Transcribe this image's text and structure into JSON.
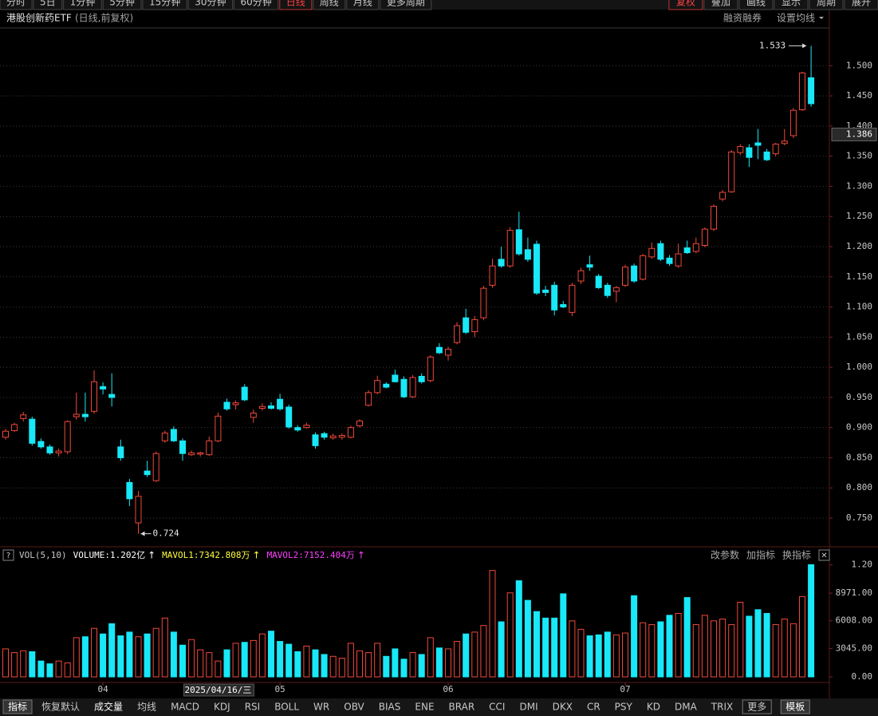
{
  "toolbar": {
    "tabs": [
      "分时",
      "5日",
      "1分钟",
      "5分钟",
      "15分钟",
      "30分钟",
      "60分钟",
      "日线",
      "周线",
      "月线",
      "更多周期"
    ],
    "active_tab_index": 7,
    "tools": [
      "复权",
      "叠加",
      "画线",
      "显示",
      "周期",
      "展开"
    ],
    "active_tool_index": 0
  },
  "header": {
    "title": "港股创新药ETF",
    "subtitle": "(日线,前复权)",
    "links": [
      "融资融券",
      "设置均线"
    ]
  },
  "chart_data": {
    "type": "candlestick",
    "open": [
      0.884,
      0.895,
      0.915,
      0.914,
      0.877,
      0.868,
      0.858,
      0.86,
      0.918,
      0.922,
      0.927,
      0.968,
      0.955,
      0.868,
      0.809,
      0.742,
      0.828,
      0.812,
      0.878,
      0.897,
      0.878,
      0.855,
      0.856,
      0.855,
      0.878,
      0.942,
      0.938,
      0.967,
      0.917,
      0.932,
      0.936,
      0.947,
      0.934,
      0.9,
      0.9,
      0.888,
      0.89,
      0.883,
      0.884,
      0.884,
      0.903,
      0.937,
      0.958,
      0.972,
      0.987,
      0.98,
      0.951,
      0.985,
      0.978,
      1.033,
      1.02,
      1.041,
      1.082,
      1.059,
      1.082,
      1.136,
      1.179,
      1.168,
      1.228,
      1.195,
      1.204,
      1.128,
      1.136,
      1.104,
      1.091,
      1.143,
      1.17,
      1.151,
      1.136,
      1.126,
      1.136,
      1.168,
      1.146,
      1.183,
      1.205,
      1.181,
      1.168,
      1.198,
      1.192,
      1.202,
      1.229,
      1.279,
      1.291,
      1.356,
      1.364,
      1.372,
      1.357,
      1.354,
      1.371,
      1.384,
      1.427,
      1.48
    ],
    "high": [
      0.898,
      0.908,
      0.926,
      0.918,
      0.882,
      0.872,
      0.865,
      0.912,
      0.958,
      0.958,
      0.995,
      0.975,
      0.99,
      0.88,
      0.815,
      0.795,
      0.845,
      0.86,
      0.895,
      0.902,
      0.882,
      0.862,
      0.86,
      0.885,
      0.925,
      0.948,
      0.945,
      0.972,
      0.93,
      0.94,
      0.942,
      0.956,
      0.938,
      0.904,
      0.908,
      0.892,
      0.893,
      0.89,
      0.89,
      0.903,
      0.914,
      0.962,
      0.986,
      0.975,
      0.996,
      0.985,
      0.987,
      0.99,
      1.02,
      1.04,
      1.034,
      1.075,
      1.097,
      1.085,
      1.135,
      1.18,
      1.2,
      1.232,
      1.258,
      1.215,
      1.21,
      1.135,
      1.142,
      1.11,
      1.14,
      1.165,
      1.185,
      1.155,
      1.14,
      1.135,
      1.17,
      1.172,
      1.188,
      1.207,
      1.21,
      1.186,
      1.205,
      1.21,
      1.215,
      1.232,
      1.27,
      1.294,
      1.36,
      1.37,
      1.37,
      1.395,
      1.362,
      1.372,
      1.395,
      1.43,
      1.49,
      1.533
    ],
    "low": [
      0.88,
      0.893,
      0.91,
      0.87,
      0.865,
      0.855,
      0.852,
      0.856,
      0.913,
      0.91,
      0.923,
      0.955,
      0.935,
      0.845,
      0.77,
      0.724,
      0.818,
      0.81,
      0.875,
      0.876,
      0.845,
      0.853,
      0.852,
      0.853,
      0.876,
      0.928,
      0.93,
      0.944,
      0.908,
      0.928,
      0.93,
      0.928,
      0.898,
      0.893,
      0.898,
      0.865,
      0.88,
      0.88,
      0.88,
      0.882,
      0.9,
      0.935,
      0.955,
      0.965,
      0.975,
      0.949,
      0.949,
      0.973,
      0.975,
      1.022,
      1.011,
      1.038,
      1.055,
      1.05,
      1.078,
      1.132,
      1.165,
      1.165,
      1.185,
      1.175,
      1.12,
      1.118,
      1.086,
      1.098,
      1.085,
      1.138,
      1.16,
      1.13,
      1.115,
      1.108,
      1.133,
      1.14,
      1.144,
      1.18,
      1.176,
      1.168,
      1.165,
      1.188,
      1.189,
      1.199,
      1.226,
      1.275,
      1.289,
      1.352,
      1.332,
      1.345,
      1.342,
      1.35,
      1.368,
      1.38,
      1.425,
      1.432
    ],
    "close": [
      0.894,
      0.905,
      0.921,
      0.874,
      0.868,
      0.858,
      0.861,
      0.91,
      0.922,
      0.918,
      0.976,
      0.964,
      0.95,
      0.85,
      0.782,
      0.786,
      0.822,
      0.857,
      0.891,
      0.878,
      0.857,
      0.858,
      0.858,
      0.878,
      0.919,
      0.931,
      0.941,
      0.946,
      0.924,
      0.935,
      0.932,
      0.931,
      0.901,
      0.896,
      0.904,
      0.87,
      0.884,
      0.886,
      0.887,
      0.9,
      0.911,
      0.958,
      0.978,
      0.967,
      0.976,
      0.951,
      0.983,
      0.976,
      1.017,
      1.024,
      1.03,
      1.069,
      1.058,
      1.079,
      1.131,
      1.168,
      1.168,
      1.227,
      1.188,
      1.179,
      1.123,
      1.124,
      1.095,
      1.1,
      1.136,
      1.16,
      1.166,
      1.132,
      1.119,
      1.132,
      1.166,
      1.143,
      1.185,
      1.197,
      1.179,
      1.172,
      1.188,
      1.19,
      1.205,
      1.229,
      1.267,
      1.29,
      1.357,
      1.366,
      1.348,
      1.368,
      1.344,
      1.37,
      1.375,
      1.426,
      1.488,
      1.437
    ],
    "volume": [
      3000,
      2600,
      2800,
      2700,
      1700,
      1400,
      1700,
      1500,
      4200,
      4300,
      5200,
      4600,
      5700,
      4400,
      4800,
      4300,
      4600,
      5200,
      6300,
      4800,
      3400,
      4000,
      2900,
      2600,
      1700,
      2900,
      3600,
      3700,
      3900,
      4600,
      4900,
      3800,
      3500,
      2700,
      3300,
      2900,
      2400,
      2200,
      2000,
      3600,
      2800,
      2600,
      3600,
      2200,
      3000,
      1900,
      2600,
      2400,
      4200,
      3100,
      3000,
      3800,
      4600,
      4800,
      5500,
      11400,
      5900,
      9000,
      10300,
      8200,
      7000,
      6300,
      6300,
      8900,
      6000,
      5100,
      4400,
      4500,
      4800,
      4500,
      4700,
      8700,
      5800,
      5600,
      5900,
      6600,
      6800,
      8500,
      5600,
      6600,
      6000,
      6200,
      5600,
      8000,
      6500,
      7200,
      6800,
      5600,
      6200,
      5700,
      8600,
      12020
    ],
    "up_color": "#f0483a",
    "down_color": "#18e8f8",
    "ylim": [
      0.709,
      1.556
    ],
    "yticks": [
      {
        "value": 0.75,
        "label": "0.750"
      },
      {
        "value": 0.8,
        "label": "0.800"
      },
      {
        "value": 0.85,
        "label": "0.850"
      },
      {
        "value": 0.9,
        "label": "0.900"
      },
      {
        "value": 0.95,
        "label": "0.950"
      },
      {
        "value": 1.0,
        "label": "1.000"
      },
      {
        "value": 1.05,
        "label": "1.050"
      },
      {
        "value": 1.1,
        "label": "1.100"
      },
      {
        "value": 1.15,
        "label": "1.150"
      },
      {
        "value": 1.2,
        "label": "1.200"
      },
      {
        "value": 1.25,
        "label": "1.250"
      },
      {
        "value": 1.3,
        "label": "1.300"
      },
      {
        "value": 1.35,
        "label": "1.350"
      },
      {
        "value": 1.4,
        "label": "1.400"
      },
      {
        "value": 1.45,
        "label": "1.450"
      },
      {
        "value": 1.5,
        "label": "1.500"
      }
    ],
    "vol_ylim": [
      0,
      12400
    ],
    "vol_yticks": [
      {
        "value": 0,
        "label": "0.00"
      },
      {
        "value": 3045,
        "label": "3045.00"
      },
      {
        "value": 6008,
        "label": "6008.00"
      },
      {
        "value": 8971,
        "label": "8971.00"
      },
      {
        "value": 12000,
        "label": "1.20"
      }
    ],
    "x_labels": [
      {
        "index": 11,
        "label": "04"
      },
      {
        "index": 31,
        "label": "05"
      },
      {
        "index": 50,
        "label": "06"
      },
      {
        "index": 70,
        "label": "07"
      }
    ],
    "cursor": {
      "index": 24,
      "label": "2025/04/16/三",
      "price": 1.386
    },
    "high_mark_index": 91,
    "low_mark_index": 15,
    "grid": true
  },
  "volume_header": {
    "help": "?",
    "name": "VOL(5,10)",
    "items": [
      {
        "text": "VOLUME:1.202亿",
        "trend": "↑",
        "color": "#ffffff"
      },
      {
        "text": "MAVOL1:7342.808万",
        "trend": "↑",
        "color": "#ffff40"
      },
      {
        "text": "MAVOL2:7152.404万",
        "trend": "↑",
        "color": "#ff40ff"
      }
    ],
    "tools": [
      "改参数",
      "加指标",
      "换指标"
    ],
    "close": "✕"
  },
  "bottom_tabs": {
    "tabs": [
      "指标",
      "恢复默认",
      "成交量",
      "均线",
      "MACD",
      "KDJ",
      "RSI",
      "BOLL",
      "WR",
      "OBV",
      "BIAS",
      "ENE",
      "BRAR",
      "CCI",
      "DMI",
      "DKX",
      "CR",
      "PSY",
      "KD",
      "DMA",
      "TRIX",
      "更多",
      "模板"
    ],
    "active_index": 2
  }
}
